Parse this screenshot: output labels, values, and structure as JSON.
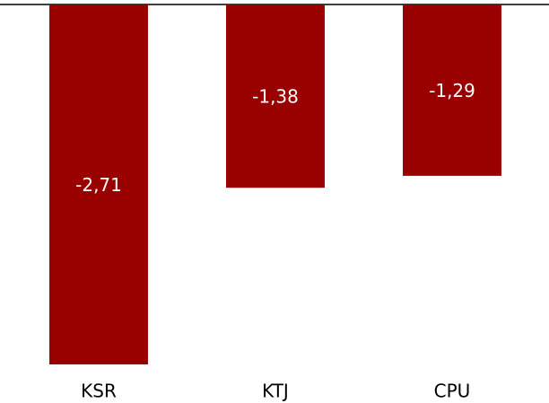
{
  "chart_data": {
    "type": "bar",
    "categories": [
      "KSR",
      "KTJ",
      "CPU"
    ],
    "values": [
      -2.71,
      -1.38,
      -1.29
    ],
    "value_labels": [
      "-2,71",
      "-1,38",
      "-1,29"
    ],
    "color": "#990000",
    "ylim": [
      -2.71,
      0
    ]
  }
}
